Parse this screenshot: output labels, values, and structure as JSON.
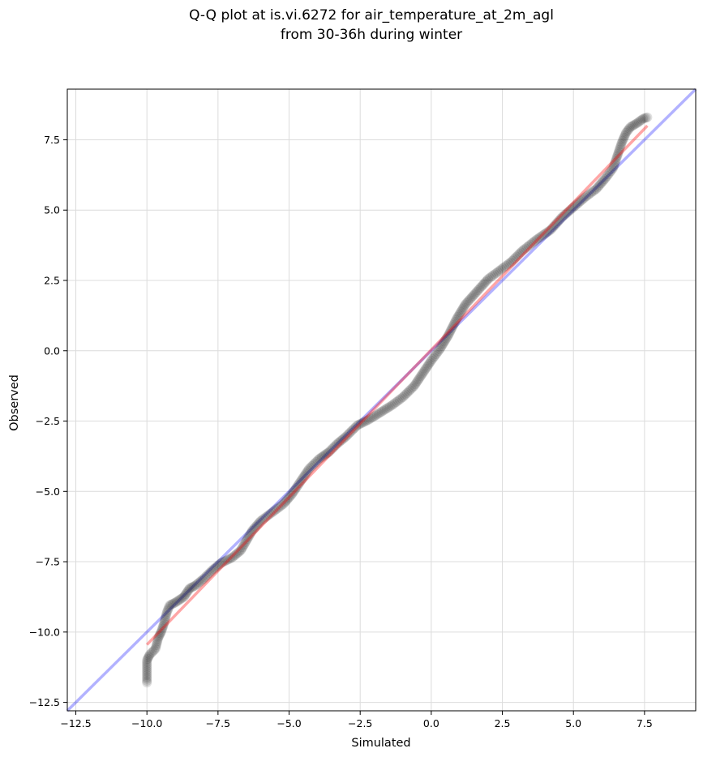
{
  "chart_data": {
    "type": "scatter",
    "title": [
      "Q-Q plot at is.vi.6272 for air_temperature_at_2m_agl",
      "from 30-36h during winter"
    ],
    "xlabel": "Simulated",
    "ylabel": "Observed",
    "xlim": [
      -12.8,
      9.3
    ],
    "ylim": [
      -12.8,
      9.3
    ],
    "grid": true,
    "x_ticks": [
      -12.5,
      -10.0,
      -7.5,
      -5.0,
      -2.5,
      0.0,
      2.5,
      5.0,
      7.5
    ],
    "x_tick_labels": [
      "−12.5",
      "−10.0",
      "−7.5",
      "−5.0",
      "−2.5",
      "0.0",
      "2.5",
      "5.0",
      "7.5"
    ],
    "y_ticks": [
      -12.5,
      -10.0,
      -7.5,
      -5.0,
      -2.5,
      0.0,
      2.5,
      5.0,
      7.5
    ],
    "y_tick_labels": [
      "−12.5",
      "−10.0",
      "−7.5",
      "−5.0",
      "−2.5",
      "0.0",
      "2.5",
      "5.0",
      "7.5"
    ],
    "reference_line": {
      "points": [
        [
          -12.8,
          -12.8
        ],
        [
          9.3,
          9.3
        ]
      ],
      "color": "#0000ff",
      "opacity": 0.3
    },
    "fit_line": {
      "points": [
        [
          -10.0,
          -10.45
        ],
        [
          7.6,
          8.0
        ]
      ],
      "color": "#ff0000",
      "opacity": 0.35
    },
    "marker_color": "#000000",
    "marker_opacity": 0.12,
    "quantile_curve": [
      [
        -10.0,
        -11.8
      ],
      [
        -10.0,
        -11.0
      ],
      [
        -9.9,
        -10.8
      ],
      [
        -9.7,
        -10.6
      ],
      [
        -9.6,
        -10.2
      ],
      [
        -9.5,
        -10.0
      ],
      [
        -9.4,
        -9.7
      ],
      [
        -9.35,
        -9.5
      ],
      [
        -9.3,
        -9.3
      ],
      [
        -9.2,
        -9.05
      ],
      [
        -9.0,
        -8.95
      ],
      [
        -8.7,
        -8.75
      ],
      [
        -8.5,
        -8.45
      ],
      [
        -8.3,
        -8.35
      ],
      [
        -8.0,
        -8.1
      ],
      [
        -7.7,
        -7.8
      ],
      [
        -7.4,
        -7.55
      ],
      [
        -7.0,
        -7.35
      ],
      [
        -6.7,
        -7.1
      ],
      [
        -6.5,
        -6.75
      ],
      [
        -6.3,
        -6.4
      ],
      [
        -6.0,
        -6.05
      ],
      [
        -5.6,
        -5.75
      ],
      [
        -5.2,
        -5.45
      ],
      [
        -4.9,
        -5.1
      ],
      [
        -4.6,
        -4.65
      ],
      [
        -4.3,
        -4.2
      ],
      [
        -3.95,
        -3.85
      ],
      [
        -3.6,
        -3.6
      ],
      [
        -3.3,
        -3.3
      ],
      [
        -3.0,
        -3.05
      ],
      [
        -2.6,
        -2.65
      ],
      [
        -2.2,
        -2.45
      ],
      [
        -1.8,
        -2.2
      ],
      [
        -1.4,
        -1.95
      ],
      [
        -1.0,
        -1.65
      ],
      [
        -0.6,
        -1.25
      ],
      [
        -0.3,
        -0.8
      ],
      [
        0.0,
        -0.35
      ],
      [
        0.3,
        0.05
      ],
      [
        0.6,
        0.55
      ],
      [
        0.9,
        1.15
      ],
      [
        1.2,
        1.65
      ],
      [
        1.6,
        2.1
      ],
      [
        2.0,
        2.55
      ],
      [
        2.4,
        2.85
      ],
      [
        2.8,
        3.15
      ],
      [
        3.2,
        3.55
      ],
      [
        3.7,
        3.95
      ],
      [
        4.2,
        4.3
      ],
      [
        4.6,
        4.75
      ],
      [
        5.0,
        5.1
      ],
      [
        5.4,
        5.45
      ],
      [
        5.8,
        5.75
      ],
      [
        6.1,
        6.1
      ],
      [
        6.4,
        6.5
      ],
      [
        6.55,
        6.95
      ],
      [
        6.7,
        7.4
      ],
      [
        6.85,
        7.75
      ],
      [
        7.0,
        7.95
      ],
      [
        7.25,
        8.1
      ],
      [
        7.45,
        8.25
      ],
      [
        7.6,
        8.3
      ]
    ]
  }
}
